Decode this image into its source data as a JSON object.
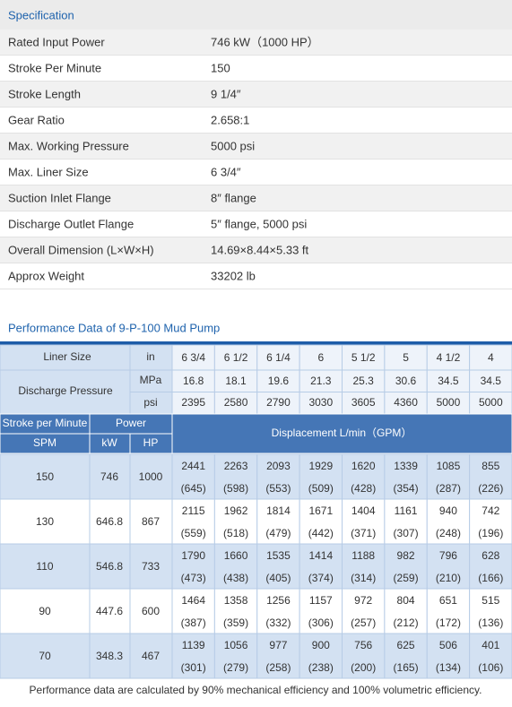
{
  "spec": {
    "title": "Specification",
    "rows": [
      [
        "Rated Input Power",
        "746 kW（1000 HP）"
      ],
      [
        "Stroke Per Minute",
        "150"
      ],
      [
        "Stroke Length",
        "9 1/4″"
      ],
      [
        "Gear Ratio",
        "2.658:1"
      ],
      [
        "Max. Working Pressure",
        "5000 psi"
      ],
      [
        "Max. Liner Size",
        "6 3/4″"
      ],
      [
        "Suction Inlet Flange",
        "8″  flange"
      ],
      [
        "Discharge Outlet Flange",
        "5″ flange, 5000 psi"
      ],
      [
        "Overall Dimension (L×W×H)",
        "14.69×8.44×5.33 ft"
      ],
      [
        "Approx Weight",
        "33202 lb"
      ]
    ]
  },
  "performance": {
    "title": "Performance Data of 9-P-100 Mud Pump",
    "liner_label": "Liner Size",
    "unit_in": "in",
    "liners": [
      "6 3/4",
      "6 1/2",
      "6 1/4",
      "6",
      "5 1/2",
      "5",
      "4 1/2",
      "4"
    ],
    "pressure_label": "Discharge Pressure",
    "unit_mpa": "MPa",
    "mpa": [
      16.8,
      18.1,
      19.6,
      21.3,
      25.3,
      30.6,
      34.5,
      34.5
    ],
    "unit_psi": "psi",
    "psi": [
      2395,
      2580,
      2790,
      3030,
      3605,
      4360,
      5000,
      5000
    ],
    "header": {
      "spm_label": "Stroke per Minute",
      "power_label": "Power",
      "spm": "SPM",
      "kw": "kW",
      "hp": "HP",
      "displacement": "Displacement  L/min（GPM）"
    },
    "rows": [
      {
        "spm": 150,
        "kw": 746,
        "hp": 1000,
        "lmin": [
          2441,
          2263,
          2093,
          1929,
          1620,
          1339,
          1085,
          855
        ],
        "gpm": [
          "(645)",
          "(598)",
          "(553)",
          "(509)",
          "(428)",
          "(354)",
          "(287)",
          "(226)"
        ]
      },
      {
        "spm": 130,
        "kw": 646.8,
        "hp": 867,
        "lmin": [
          2115,
          1962,
          1814,
          1671,
          1404,
          1161,
          940,
          742
        ],
        "gpm": [
          "(559)",
          "(518)",
          "(479)",
          "(442)",
          "(371)",
          "(307)",
          "(248)",
          "(196)"
        ]
      },
      {
        "spm": 110,
        "kw": 546.8,
        "hp": 733,
        "lmin": [
          1790,
          1660,
          1535,
          1414,
          1188,
          982,
          796,
          628
        ],
        "gpm": [
          "(473)",
          "(438)",
          "(405)",
          "(374)",
          "(314)",
          "(259)",
          "(210)",
          "(166)"
        ]
      },
      {
        "spm": 90,
        "kw": 447.6,
        "hp": 600,
        "lmin": [
          1464,
          1358,
          1256,
          1157,
          972,
          804,
          651,
          515
        ],
        "gpm": [
          "(387)",
          "(359)",
          "(332)",
          "(306)",
          "(257)",
          "(212)",
          "(172)",
          "(136)"
        ]
      },
      {
        "spm": 70,
        "kw": 348.3,
        "hp": 467,
        "lmin": [
          1139,
          1056,
          977,
          900,
          756,
          625,
          506,
          401
        ],
        "gpm": [
          "(301)",
          "(279)",
          "(258)",
          "(238)",
          "(200)",
          "(165)",
          "(134)",
          "(106)"
        ]
      }
    ],
    "note": "Performance data are calculated by 90% mechanical efficiency and 100% volumetric efficiency."
  }
}
